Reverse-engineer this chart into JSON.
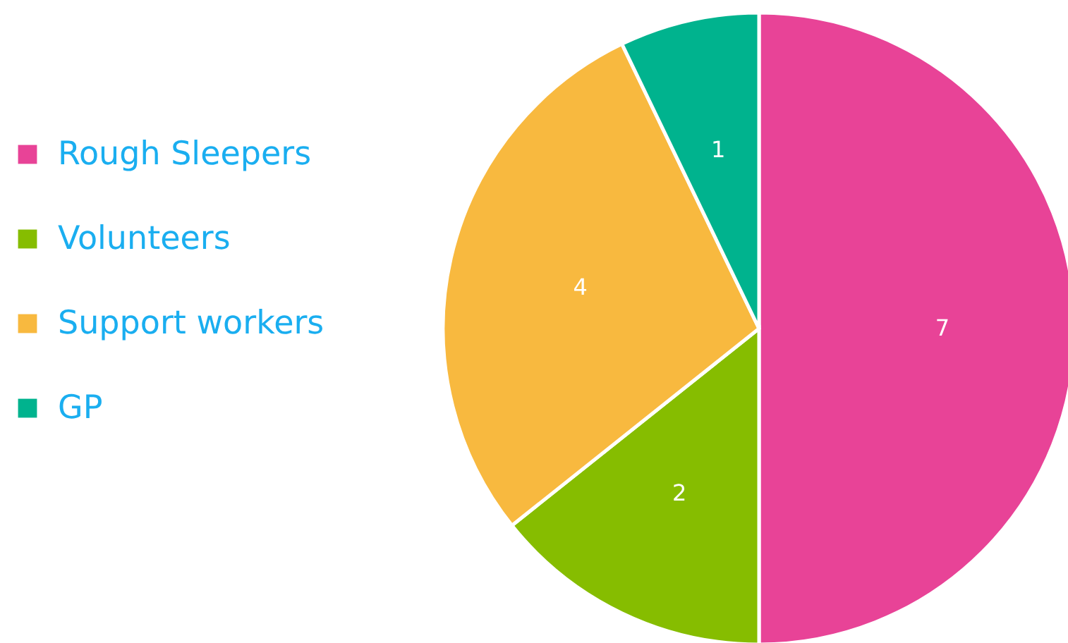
{
  "chart_data": {
    "type": "pie",
    "categories": [
      "Rough Sleepers",
      "Volunteers",
      "Support workers",
      "GP"
    ],
    "values": [
      7,
      2,
      4,
      1
    ],
    "colors": [
      "#e84397",
      "#86bd00",
      "#f8b93f",
      "#00b38e"
    ],
    "data_labels": true,
    "legend": "left"
  }
}
